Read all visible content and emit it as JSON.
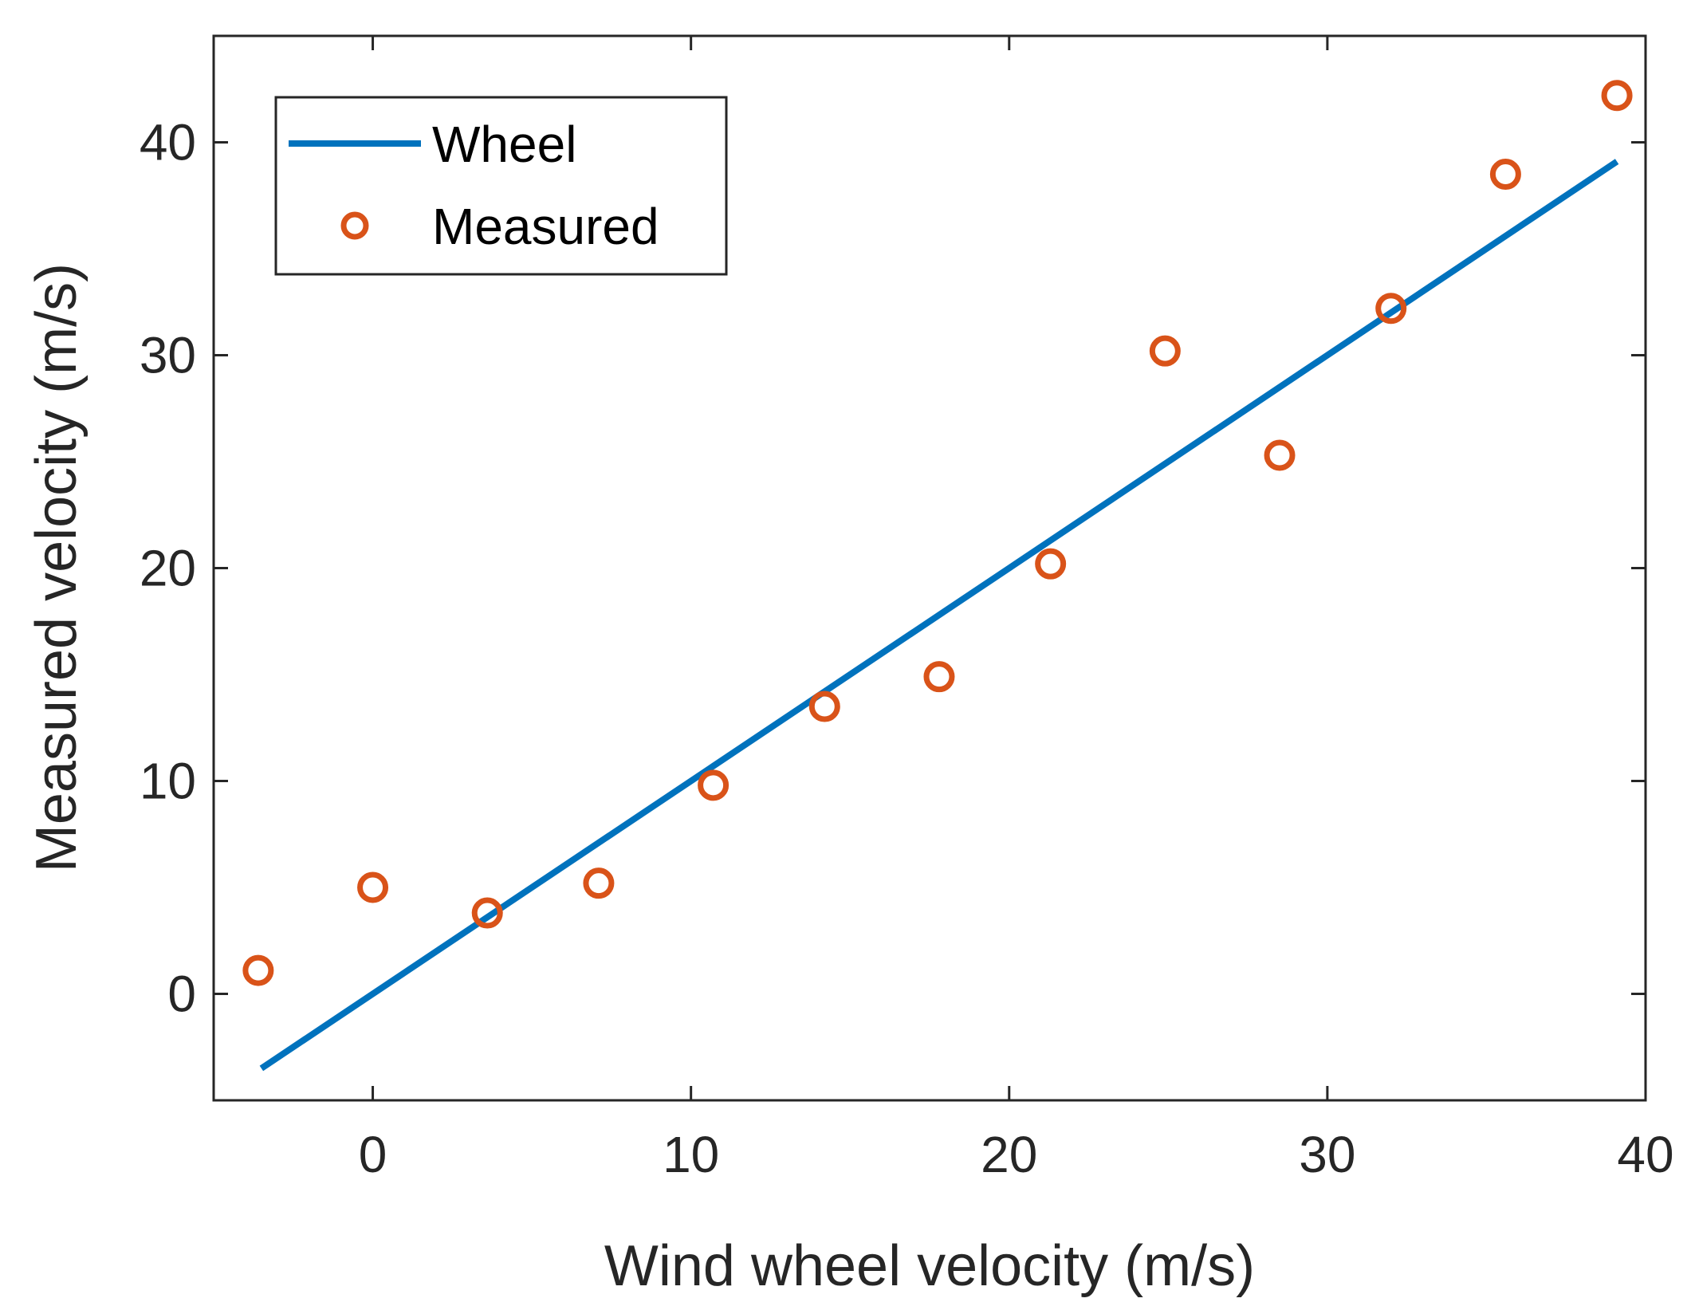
{
  "chart_data": {
    "type": "scatter",
    "xlabel": "Wind wheel velocity (m/s)",
    "ylabel": "Measured velocity (m/s)",
    "xlim": [
      -5,
      40
    ],
    "ylim": [
      -5,
      45
    ],
    "xticks": [
      "0",
      "10",
      "20",
      "30",
      "40"
    ],
    "xtick_values": [
      0,
      10,
      20,
      30,
      40
    ],
    "yticks": [
      "0",
      "10",
      "20",
      "30",
      "40"
    ],
    "ytick_values": [
      0,
      10,
      20,
      30,
      40
    ],
    "grid": false,
    "legend_position": "top-left",
    "series": [
      {
        "name": "Wheel",
        "kind": "line",
        "color": "#0072BD",
        "x": [
          -3.5,
          39.1
        ],
        "y": [
          -3.5,
          39.1
        ]
      },
      {
        "name": "Measured",
        "kind": "scatter",
        "marker": "circle-open",
        "color": "#D95319",
        "x": [
          -3.6,
          0.0,
          3.6,
          7.1,
          10.7,
          14.2,
          17.8,
          21.3,
          24.9,
          28.5,
          32.0,
          35.6,
          39.1
        ],
        "y": [
          1.1,
          5.0,
          3.8,
          5.2,
          9.8,
          13.5,
          14.9,
          20.2,
          30.2,
          25.3,
          32.2,
          38.5,
          42.2
        ]
      }
    ]
  }
}
